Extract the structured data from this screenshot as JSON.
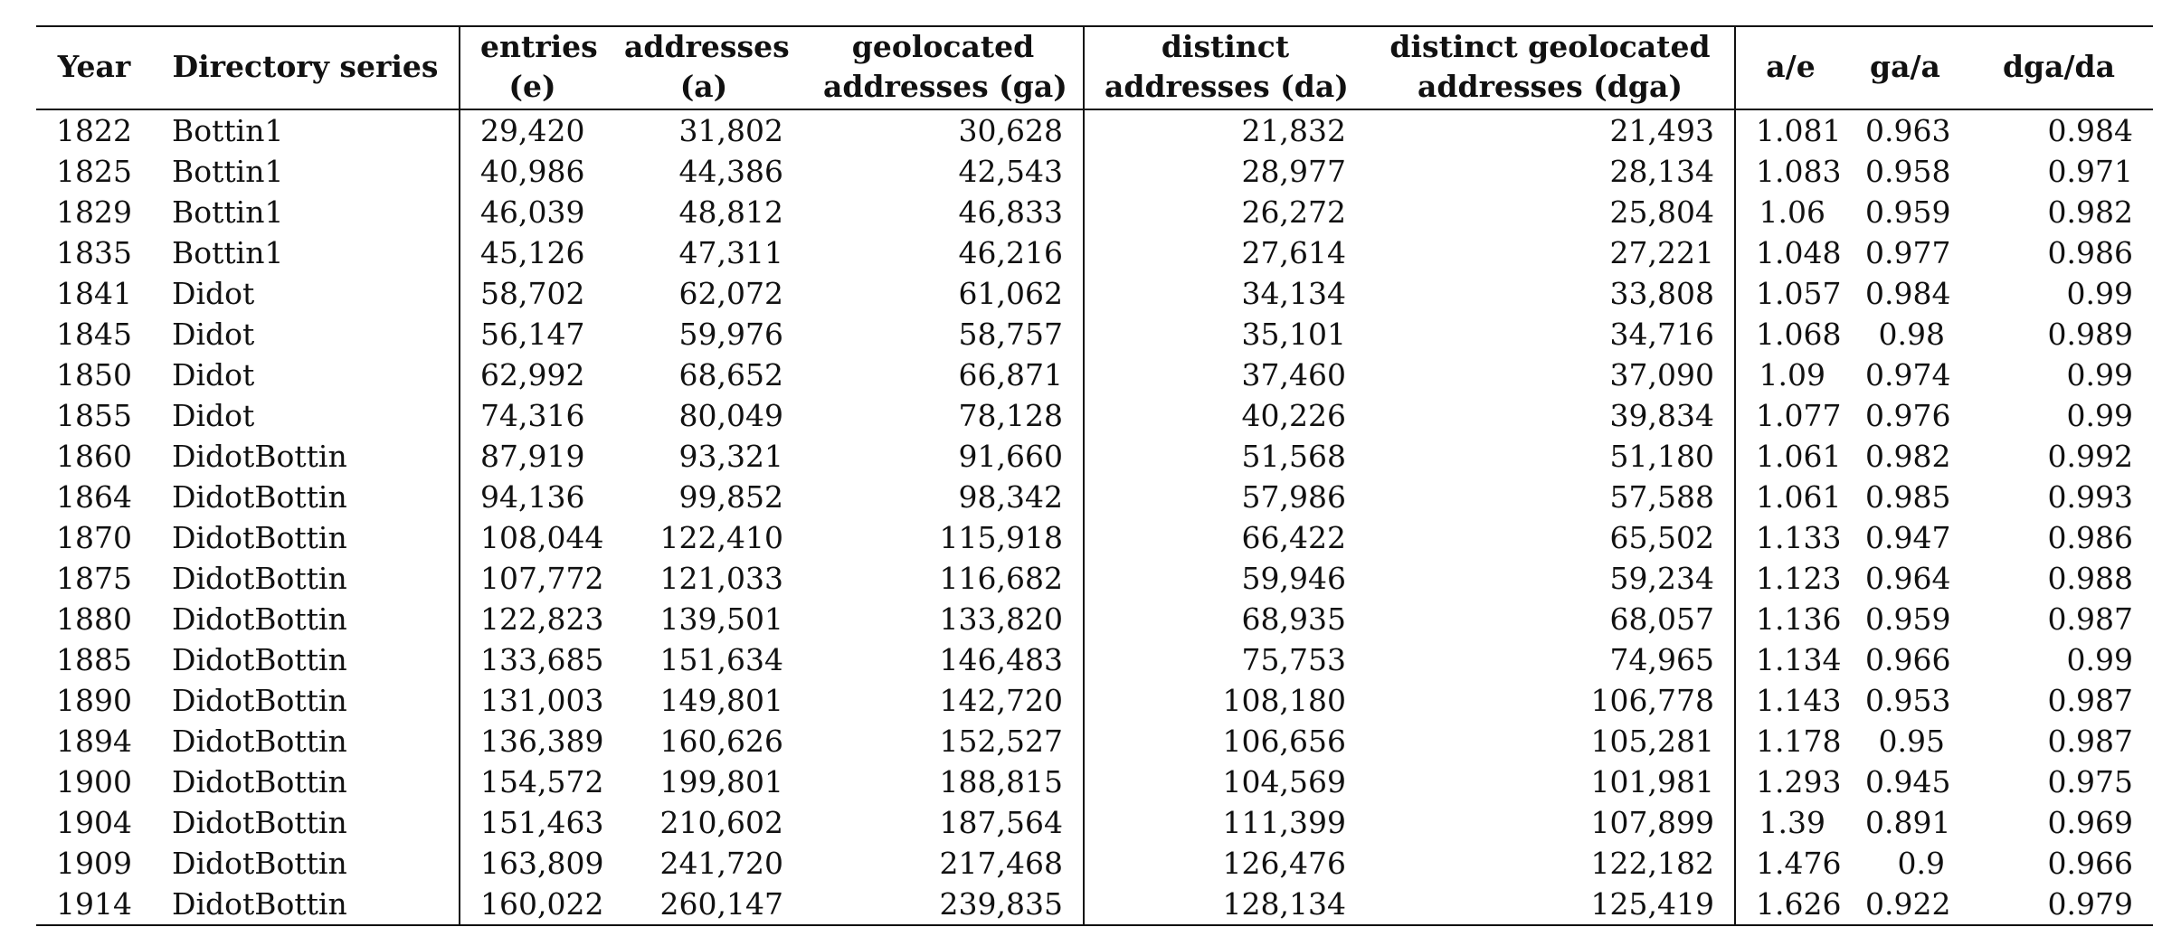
{
  "table": {
    "headers": {
      "year": "Year",
      "series": "Directory series",
      "e": [
        "entries",
        "(e)"
      ],
      "a": [
        "addresses",
        "(a)"
      ],
      "ga": [
        "geolocated",
        "addresses (ga)"
      ],
      "da": [
        "distinct",
        "addresses (da)"
      ],
      "dga": [
        "distinct geolocated",
        "addresses (dga)"
      ],
      "a_e": "a/e",
      "ga_a": "ga/a",
      "dga_da": "dga/da"
    },
    "rows": [
      [
        "1822",
        "Bottin1",
        "29,420",
        "31,802",
        "30,628",
        "21,832",
        "21,493",
        "1.081",
        "0.963",
        "0.984"
      ],
      [
        "1825",
        "Bottin1",
        "40,986",
        "44,386",
        "42,543",
        "28,977",
        "28,134",
        "1.083",
        "0.958",
        "0.971"
      ],
      [
        "1829",
        "Bottin1",
        "46,039",
        "48,812",
        "46,833",
        "26,272",
        "25,804",
        "1.06",
        "0.959",
        "0.982"
      ],
      [
        "1835",
        "Bottin1",
        "45,126",
        "47,311",
        "46,216",
        "27,614",
        "27,221",
        "1.048",
        "0.977",
        "0.986"
      ],
      [
        "1841",
        "Didot",
        "58,702",
        "62,072",
        "61,062",
        "34,134",
        "33,808",
        "1.057",
        "0.984",
        "0.99"
      ],
      [
        "1845",
        "Didot",
        "56,147",
        "59,976",
        "58,757",
        "35,101",
        "34,716",
        "1.068",
        "0.98",
        "0.989"
      ],
      [
        "1850",
        "Didot",
        "62,992",
        "68,652",
        "66,871",
        "37,460",
        "37,090",
        "1.09",
        "0.974",
        "0.99"
      ],
      [
        "1855",
        "Didot",
        "74,316",
        "80,049",
        "78,128",
        "40,226",
        "39,834",
        "1.077",
        "0.976",
        "0.99"
      ],
      [
        "1860",
        "DidotBottin",
        "87,919",
        "93,321",
        "91,660",
        "51,568",
        "51,180",
        "1.061",
        "0.982",
        "0.992"
      ],
      [
        "1864",
        "DidotBottin",
        "94,136",
        "99,852",
        "98,342",
        "57,986",
        "57,588",
        "1.061",
        "0.985",
        "0.993"
      ],
      [
        "1870",
        "DidotBottin",
        "108,044",
        "122,410",
        "115,918",
        "66,422",
        "65,502",
        "1.133",
        "0.947",
        "0.986"
      ],
      [
        "1875",
        "DidotBottin",
        "107,772",
        "121,033",
        "116,682",
        "59,946",
        "59,234",
        "1.123",
        "0.964",
        "0.988"
      ],
      [
        "1880",
        "DidotBottin",
        "122,823",
        "139,501",
        "133,820",
        "68,935",
        "68,057",
        "1.136",
        "0.959",
        "0.987"
      ],
      [
        "1885",
        "DidotBottin",
        "133,685",
        "151,634",
        "146,483",
        "75,753",
        "74,965",
        "1.134",
        "0.966",
        "0.99"
      ],
      [
        "1890",
        "DidotBottin",
        "131,003",
        "149,801",
        "142,720",
        "108,180",
        "106,778",
        "1.143",
        "0.953",
        "0.987"
      ],
      [
        "1894",
        "DidotBottin",
        "136,389",
        "160,626",
        "152,527",
        "106,656",
        "105,281",
        "1.178",
        "0.95",
        "0.987"
      ],
      [
        "1900",
        "DidotBottin",
        "154,572",
        "199,801",
        "188,815",
        "104,569",
        "101,981",
        "1.293",
        "0.945",
        "0.975"
      ],
      [
        "1904",
        "DidotBottin",
        "151,463",
        "210,602",
        "187,564",
        "111,399",
        "107,899",
        "1.39",
        "0.891",
        "0.969"
      ],
      [
        "1909",
        "DidotBottin",
        "163,809",
        "241,720",
        "217,468",
        "126,476",
        "122,182",
        "1.476",
        "0.9",
        "0.966"
      ],
      [
        "1914",
        "DidotBottin",
        "160,022",
        "260,147",
        "239,835",
        "128,134",
        "125,419",
        "1.626",
        "0.922",
        "0.979"
      ]
    ]
  }
}
